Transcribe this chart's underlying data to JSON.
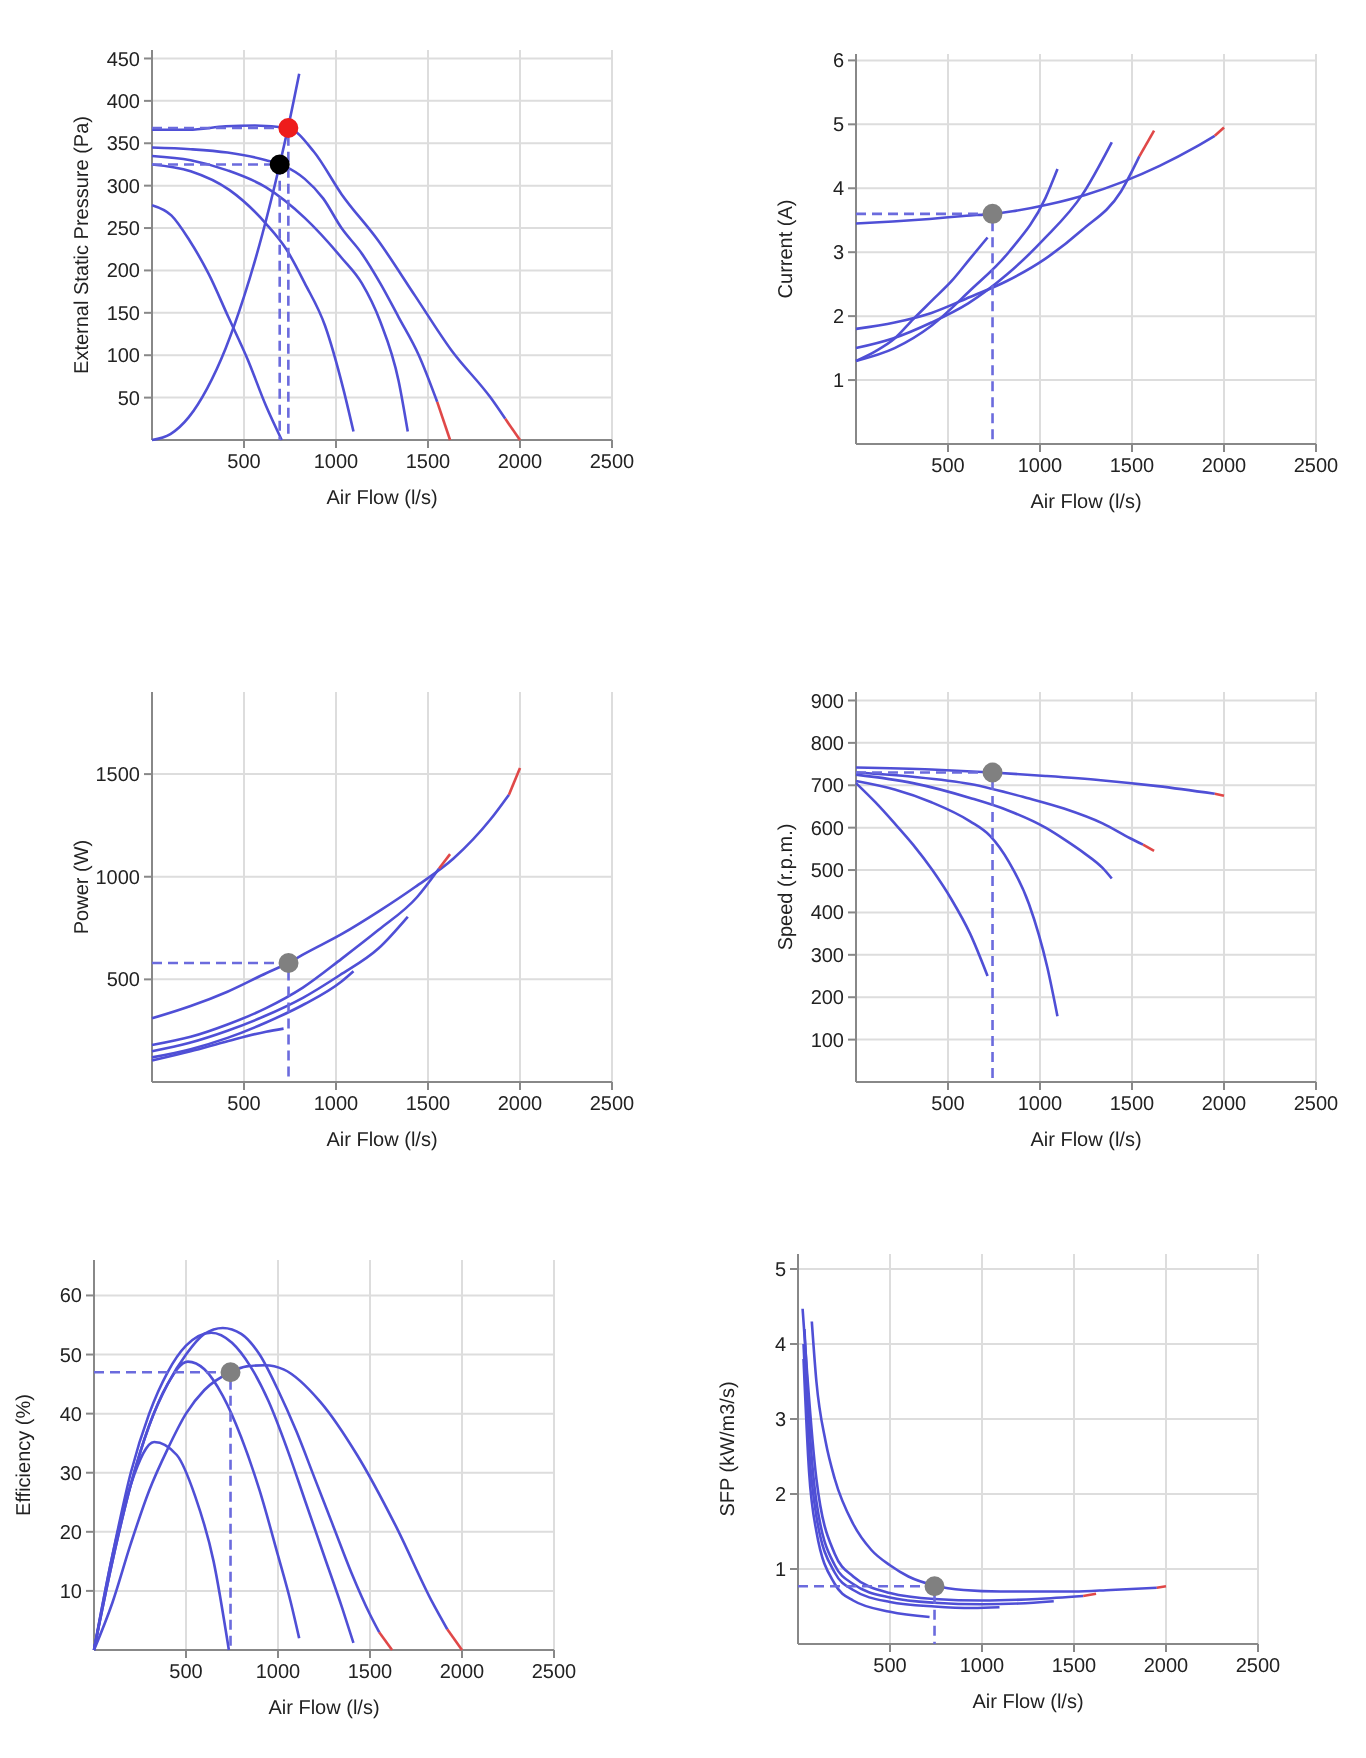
{
  "chart_data": [
    {
      "type": "line",
      "xlabel": "Air Flow (l/s)",
      "ylabel": "External Static Pressure (Pa)",
      "xlim": [
        0,
        2500
      ],
      "ylim": [
        0,
        460
      ],
      "xticks": [
        500,
        1000,
        1500,
        2000,
        2500
      ],
      "yticks": [
        50,
        100,
        150,
        200,
        250,
        300,
        350,
        400,
        450
      ],
      "grid": true,
      "series": [
        {
          "color": "#4f4fd6",
          "x": [
            0,
            200,
            400,
            560,
            740,
            880,
            1030,
            1230,
            1430,
            1630,
            1840,
            1920
          ],
          "values": [
            366,
            366,
            370,
            371,
            368,
            340,
            290,
            235,
            170,
            105,
            50,
            25
          ]
        },
        {
          "color": "#e04848",
          "x": [
            1920,
            2000
          ],
          "values": [
            25,
            0
          ]
        },
        {
          "color": "#4f4fd6",
          "x": [
            0,
            210,
            410,
            620,
            720,
            830,
            930,
            1030,
            1140,
            1240,
            1340,
            1450,
            1550
          ],
          "values": [
            345,
            343,
            339,
            330,
            323,
            308,
            285,
            250,
            220,
            185,
            145,
            100,
            45
          ]
        },
        {
          "color": "#e04848",
          "x": [
            1550,
            1620
          ],
          "values": [
            45,
            0
          ]
        },
        {
          "color": "#4f4fd6",
          "x": [
            0,
            210,
            410,
            620,
            830,
            1030,
            1140,
            1240,
            1340,
            1390
          ],
          "values": [
            335,
            330,
            318,
            298,
            262,
            215,
            185,
            140,
            70,
            10
          ]
        },
        {
          "color": "#4f4fd6",
          "x": [
            0,
            210,
            420,
            620,
            730,
            830,
            940,
            1040,
            1095
          ],
          "values": [
            325,
            317,
            295,
            255,
            225,
            185,
            135,
            60,
            10
          ]
        },
        {
          "color": "#4f4fd6",
          "x": [
            0,
            105,
            205,
            310,
            415,
            520,
            620,
            705
          ],
          "values": [
            277,
            265,
            235,
            195,
            145,
            95,
            40,
            0
          ]
        },
        {
          "color": "#4f4fd6",
          "x": [
            0,
            100,
            200,
            300,
            400,
            500,
            600,
            694,
            741,
            800
          ],
          "values": [
            0,
            7,
            27,
            61,
            108,
            169,
            243,
            325,
            370,
            432
          ]
        },
        {
          "color": "#6b6bdd",
          "line_style": "dashed",
          "x": [
            0,
            741,
            741
          ],
          "values": [
            368,
            368,
            0
          ]
        },
        {
          "color": "#6b6bdd",
          "line_style": "dashed",
          "x": [
            0,
            694,
            694
          ],
          "values": [
            325,
            325,
            0
          ]
        },
        {
          "type": "scatter",
          "color": "#ee1c1c",
          "x": [
            741
          ],
          "values": [
            368
          ]
        },
        {
          "type": "scatter",
          "color": "#000000",
          "x": [
            694
          ],
          "values": [
            325
          ]
        }
      ]
    },
    {
      "type": "line",
      "xlabel": "Air Flow (l/s)",
      "ylabel": "Current (A)",
      "xlim": [
        0,
        2500
      ],
      "ylim": [
        0,
        6.1
      ],
      "xticks": [
        500,
        1000,
        1500,
        2000,
        2500
      ],
      "yticks": [
        1,
        2,
        3,
        4,
        5,
        6
      ],
      "grid": true,
      "series": [
        {
          "color": "#4f4fd6",
          "x": [
            0,
            200,
            400,
            600,
            742,
            850,
            1050,
            1250,
            1450,
            1650,
            1850,
            1950
          ],
          "values": [
            3.45,
            3.48,
            3.52,
            3.57,
            3.6,
            3.64,
            3.75,
            3.9,
            4.1,
            4.35,
            4.65,
            4.82
          ]
        },
        {
          "color": "#e04848",
          "x": [
            1950,
            2000
          ],
          "values": [
            4.82,
            4.95
          ]
        },
        {
          "color": "#4f4fd6",
          "x": [
            0,
            210,
            410,
            620,
            820,
            1030,
            1230,
            1440,
            1540
          ],
          "values": [
            1.8,
            1.9,
            2.05,
            2.3,
            2.55,
            2.9,
            3.35,
            3.95,
            4.5
          ]
        },
        {
          "color": "#e04848",
          "x": [
            1540,
            1620
          ],
          "values": [
            4.5,
            4.9
          ]
        },
        {
          "color": "#4f4fd6",
          "x": [
            0,
            200,
            410,
            610,
            820,
            1020,
            1230,
            1390
          ],
          "values": [
            1.5,
            1.65,
            1.9,
            2.2,
            2.65,
            3.2,
            3.9,
            4.72
          ]
        },
        {
          "color": "#4f4fd6",
          "x": [
            0,
            210,
            410,
            620,
            830,
            1030,
            1095
          ],
          "values": [
            1.3,
            1.5,
            1.85,
            2.4,
            3.0,
            3.85,
            4.3
          ]
        },
        {
          "color": "#4f4fd6",
          "x": [
            0,
            105,
            210,
            310,
            415,
            520,
            620,
            715
          ],
          "values": [
            1.3,
            1.45,
            1.65,
            1.95,
            2.25,
            2.55,
            2.9,
            3.23
          ]
        },
        {
          "color": "#6b6bdd",
          "line_style": "dashed",
          "x": [
            0,
            742,
            742
          ],
          "values": [
            3.6,
            3.6,
            0
          ]
        },
        {
          "type": "scatter",
          "color": "#808080",
          "x": [
            742
          ],
          "values": [
            3.6
          ]
        }
      ]
    },
    {
      "type": "line",
      "xlabel": "Air Flow (l/s)",
      "ylabel": "Power (W)",
      "xlim": [
        0,
        2500
      ],
      "ylim": [
        0,
        1900
      ],
      "xticks": [
        500,
        1000,
        1500,
        2000,
        2500
      ],
      "yticks": [
        500,
        1000,
        1500
      ],
      "grid": true,
      "series": [
        {
          "color": "#4f4fd6",
          "x": [
            0,
            210,
            410,
            620,
            742,
            830,
            1030,
            1230,
            1430,
            1640,
            1840,
            1940
          ],
          "values": [
            310,
            370,
            440,
            530,
            580,
            625,
            720,
            830,
            950,
            1090,
            1280,
            1400
          ]
        },
        {
          "color": "#e04848",
          "x": [
            1940,
            2000
          ],
          "values": [
            1400,
            1530
          ]
        },
        {
          "color": "#4f4fd6",
          "x": [
            0,
            210,
            410,
            620,
            820,
            1030,
            1230,
            1440,
            1560
          ],
          "values": [
            180,
            220,
            280,
            360,
            460,
            600,
            740,
            900,
            1040
          ]
        },
        {
          "color": "#e04848",
          "x": [
            1560,
            1620
          ],
          "values": [
            1040,
            1110
          ]
        },
        {
          "color": "#4f4fd6",
          "x": [
            0,
            200,
            410,
            610,
            820,
            1020,
            1230,
            1390
          ],
          "values": [
            150,
            190,
            250,
            320,
            410,
            520,
            650,
            805
          ]
        },
        {
          "color": "#4f4fd6",
          "x": [
            0,
            210,
            410,
            620,
            830,
            1030,
            1095
          ],
          "values": [
            120,
            160,
            215,
            290,
            380,
            490,
            540
          ]
        },
        {
          "color": "#4f4fd6",
          "x": [
            0,
            210,
            415,
            620,
            715
          ],
          "values": [
            105,
            150,
            200,
            245,
            260
          ]
        },
        {
          "color": "#6b6bdd",
          "line_style": "dashed",
          "x": [
            0,
            742,
            742
          ],
          "values": [
            580,
            580,
            0
          ]
        },
        {
          "type": "scatter",
          "color": "#808080",
          "x": [
            742
          ],
          "values": [
            580
          ]
        }
      ]
    },
    {
      "type": "line",
      "xlabel": "Air Flow (l/s)",
      "ylabel": "Speed (r.p.m.)",
      "xlim": [
        0,
        2500
      ],
      "ylim": [
        0,
        920
      ],
      "xticks": [
        500,
        1000,
        1500,
        2000,
        2500
      ],
      "yticks": [
        100,
        200,
        300,
        400,
        500,
        600,
        700,
        800,
        900
      ],
      "grid": true,
      "series": [
        {
          "color": "#4f4fd6",
          "x": [
            0,
            410,
            742,
            1030,
            1330,
            1640,
            1950
          ],
          "values": [
            742,
            737,
            730,
            722,
            712,
            698,
            680
          ]
        },
        {
          "color": "#e04848",
          "x": [
            1950,
            2000
          ],
          "values": [
            680,
            675
          ]
        },
        {
          "color": "#4f4fd6",
          "x": [
            0,
            310,
            620,
            930,
            1130,
            1340,
            1490,
            1560
          ],
          "values": [
            730,
            720,
            703,
            670,
            645,
            610,
            575,
            560
          ]
        },
        {
          "color": "#e04848",
          "x": [
            1560,
            1620
          ],
          "values": [
            560,
            545
          ]
        },
        {
          "color": "#4f4fd6",
          "x": [
            0,
            310,
            620,
            830,
            1030,
            1140,
            1240,
            1340,
            1390
          ],
          "values": [
            725,
            705,
            670,
            640,
            600,
            570,
            540,
            505,
            480
          ]
        },
        {
          "color": "#4f4fd6",
          "x": [
            0,
            210,
            410,
            620,
            730,
            830,
            940,
            1040,
            1095
          ],
          "values": [
            710,
            690,
            660,
            615,
            580,
            520,
            420,
            270,
            155
          ]
        },
        {
          "color": "#4f4fd6",
          "x": [
            0,
            105,
            210,
            310,
            415,
            520,
            620,
            715
          ],
          "values": [
            705,
            660,
            610,
            560,
            500,
            430,
            350,
            250
          ]
        },
        {
          "color": "#6b6bdd",
          "line_style": "dashed",
          "x": [
            0,
            742,
            742
          ],
          "values": [
            730,
            730,
            0
          ]
        },
        {
          "type": "scatter",
          "color": "#808080",
          "x": [
            742
          ],
          "values": [
            730
          ]
        }
      ]
    },
    {
      "type": "line",
      "xlabel": "Air Flow (l/s)",
      "ylabel": "Efficiency (%)",
      "xlim": [
        0,
        2500
      ],
      "ylim": [
        0,
        66
      ],
      "xticks": [
        500,
        1000,
        1500,
        2000,
        2500
      ],
      "yticks": [
        10,
        20,
        30,
        40,
        50,
        60
      ],
      "grid": true,
      "series": [
        {
          "color": "#4f4fd6",
          "x": [
            0,
            100,
            200,
            300,
            400,
            500,
            600,
            742,
            830,
            930,
            1030,
            1230,
            1430,
            1640,
            1840,
            1920
          ],
          "values": [
            0,
            8,
            18,
            27,
            34,
            40,
            44,
            47,
            48,
            48.2,
            47.5,
            42,
            33,
            21,
            8,
            3.5
          ]
        },
        {
          "color": "#e04848",
          "x": [
            1920,
            2000
          ],
          "values": [
            3.5,
            0
          ]
        },
        {
          "color": "#4f4fd6",
          "x": [
            0,
            100,
            200,
            300,
            400,
            500,
            600,
            700,
            800,
            900,
            1000,
            1100,
            1200,
            1300,
            1400,
            1500,
            1550
          ],
          "values": [
            0,
            15,
            28,
            38,
            45,
            50,
            53.5,
            54.5,
            53.5,
            50,
            44,
            37,
            29,
            21,
            13,
            6,
            3
          ]
        },
        {
          "color": "#e04848",
          "x": [
            1550,
            1620
          ],
          "values": [
            3,
            0
          ]
        },
        {
          "color": "#4f4fd6",
          "x": [
            0,
            100,
            200,
            300,
            400,
            500,
            637,
            750,
            850,
            950,
            1050,
            1150,
            1250,
            1350,
            1410
          ],
          "values": [
            0,
            16,
            30,
            40,
            47,
            51.5,
            53.7,
            52,
            48,
            42,
            34,
            25,
            16,
            7,
            1.2
          ]
        },
        {
          "color": "#4f4fd6",
          "x": [
            0,
            100,
            200,
            300,
            400,
            510,
            600,
            700,
            800,
            900,
            1000,
            1070,
            1115
          ],
          "values": [
            0,
            15,
            28,
            38,
            45,
            48.8,
            47.5,
            43,
            36,
            27,
            16,
            8,
            2
          ]
        },
        {
          "color": "#4f4fd6",
          "x": [
            0,
            100,
            200,
            327,
            450,
            550,
            650,
            733
          ],
          "values": [
            0,
            16,
            28,
            35.2,
            33,
            26,
            15,
            0
          ]
        },
        {
          "color": "#6b6bdd",
          "line_style": "dashed",
          "x": [
            0,
            742,
            742
          ],
          "values": [
            47,
            47,
            0
          ]
        },
        {
          "type": "scatter",
          "color": "#808080",
          "x": [
            742
          ],
          "values": [
            47
          ]
        }
      ]
    },
    {
      "type": "line",
      "xlabel": "Air Flow (l/s)",
      "ylabel": "SFP (kW/m3/s)",
      "xlim": [
        0,
        2500
      ],
      "ylim": [
        0,
        5.2
      ],
      "xticks": [
        500,
        1000,
        1500,
        2000,
        2500
      ],
      "yticks": [
        1,
        2,
        3,
        4,
        5
      ],
      "grid": true,
      "series": [
        {
          "color": "#4f4fd6",
          "x": [
            75,
            100,
            150,
            200,
            300,
            400,
            500,
            600,
            742,
            900,
            1100,
            1300,
            1500,
            1700,
            1950
          ],
          "values": [
            4.3,
            3.5,
            2.7,
            2.2,
            1.6,
            1.25,
            1.05,
            0.9,
            0.78,
            0.72,
            0.7,
            0.7,
            0.7,
            0.72,
            0.75
          ]
        },
        {
          "color": "#e04848",
          "x": [
            1950,
            2000
          ],
          "values": [
            0.75,
            0.77
          ]
        },
        {
          "color": "#4f4fd6",
          "x": [
            25,
            50,
            100,
            200,
            300,
            500,
            742,
            1000,
            1300,
            1550
          ],
          "values": [
            4.47,
            3.6,
            2.2,
            1.2,
            0.9,
            0.68,
            0.6,
            0.58,
            0.6,
            0.64
          ]
        },
        {
          "color": "#e04848",
          "x": [
            1550,
            1620
          ],
          "values": [
            0.64,
            0.67
          ]
        },
        {
          "color": "#4f4fd6",
          "x": [
            35,
            60,
            100,
            200,
            300,
            500,
            742,
            1000,
            1200,
            1390
          ],
          "values": [
            4.2,
            3.0,
            1.9,
            1.05,
            0.8,
            0.62,
            0.55,
            0.53,
            0.54,
            0.57
          ]
        },
        {
          "color": "#4f4fd6",
          "x": [
            30,
            60,
            100,
            200,
            300,
            500,
            742,
            950,
            1095
          ],
          "values": [
            4.0,
            2.6,
            1.7,
            0.95,
            0.72,
            0.56,
            0.5,
            0.48,
            0.49
          ]
        },
        {
          "color": "#4f4fd6",
          "x": [
            30,
            60,
            100,
            200,
            300,
            500,
            715
          ],
          "values": [
            3.8,
            2.3,
            1.5,
            0.8,
            0.58,
            0.43,
            0.36
          ]
        },
        {
          "color": "#6b6bdd",
          "line_style": "dashed",
          "x": [
            0,
            742,
            742
          ],
          "values": [
            0.77,
            0.77,
            0
          ]
        },
        {
          "type": "scatter",
          "color": "#808080",
          "x": [
            742
          ],
          "values": [
            0.77
          ]
        }
      ]
    }
  ]
}
